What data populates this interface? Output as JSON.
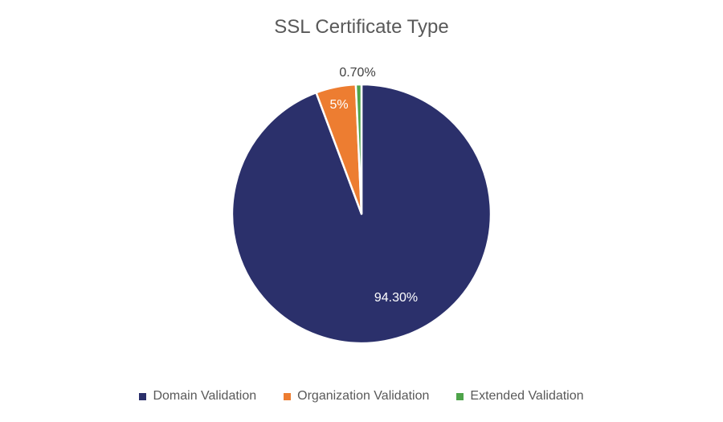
{
  "chart_data": {
    "type": "pie",
    "title": "SSL Certificate Type",
    "categories": [
      "Domain Validation",
      "Organization Validation",
      "Extended Validation"
    ],
    "values": [
      94.3,
      5,
      0.7
    ],
    "labels": [
      "94.30%",
      "5%",
      "0.70%"
    ],
    "colors": [
      "#2B306B",
      "#ED7D31",
      "#4EA44A"
    ],
    "start_angle": "12 o'clock, clockwise",
    "legend_position": "bottom"
  }
}
